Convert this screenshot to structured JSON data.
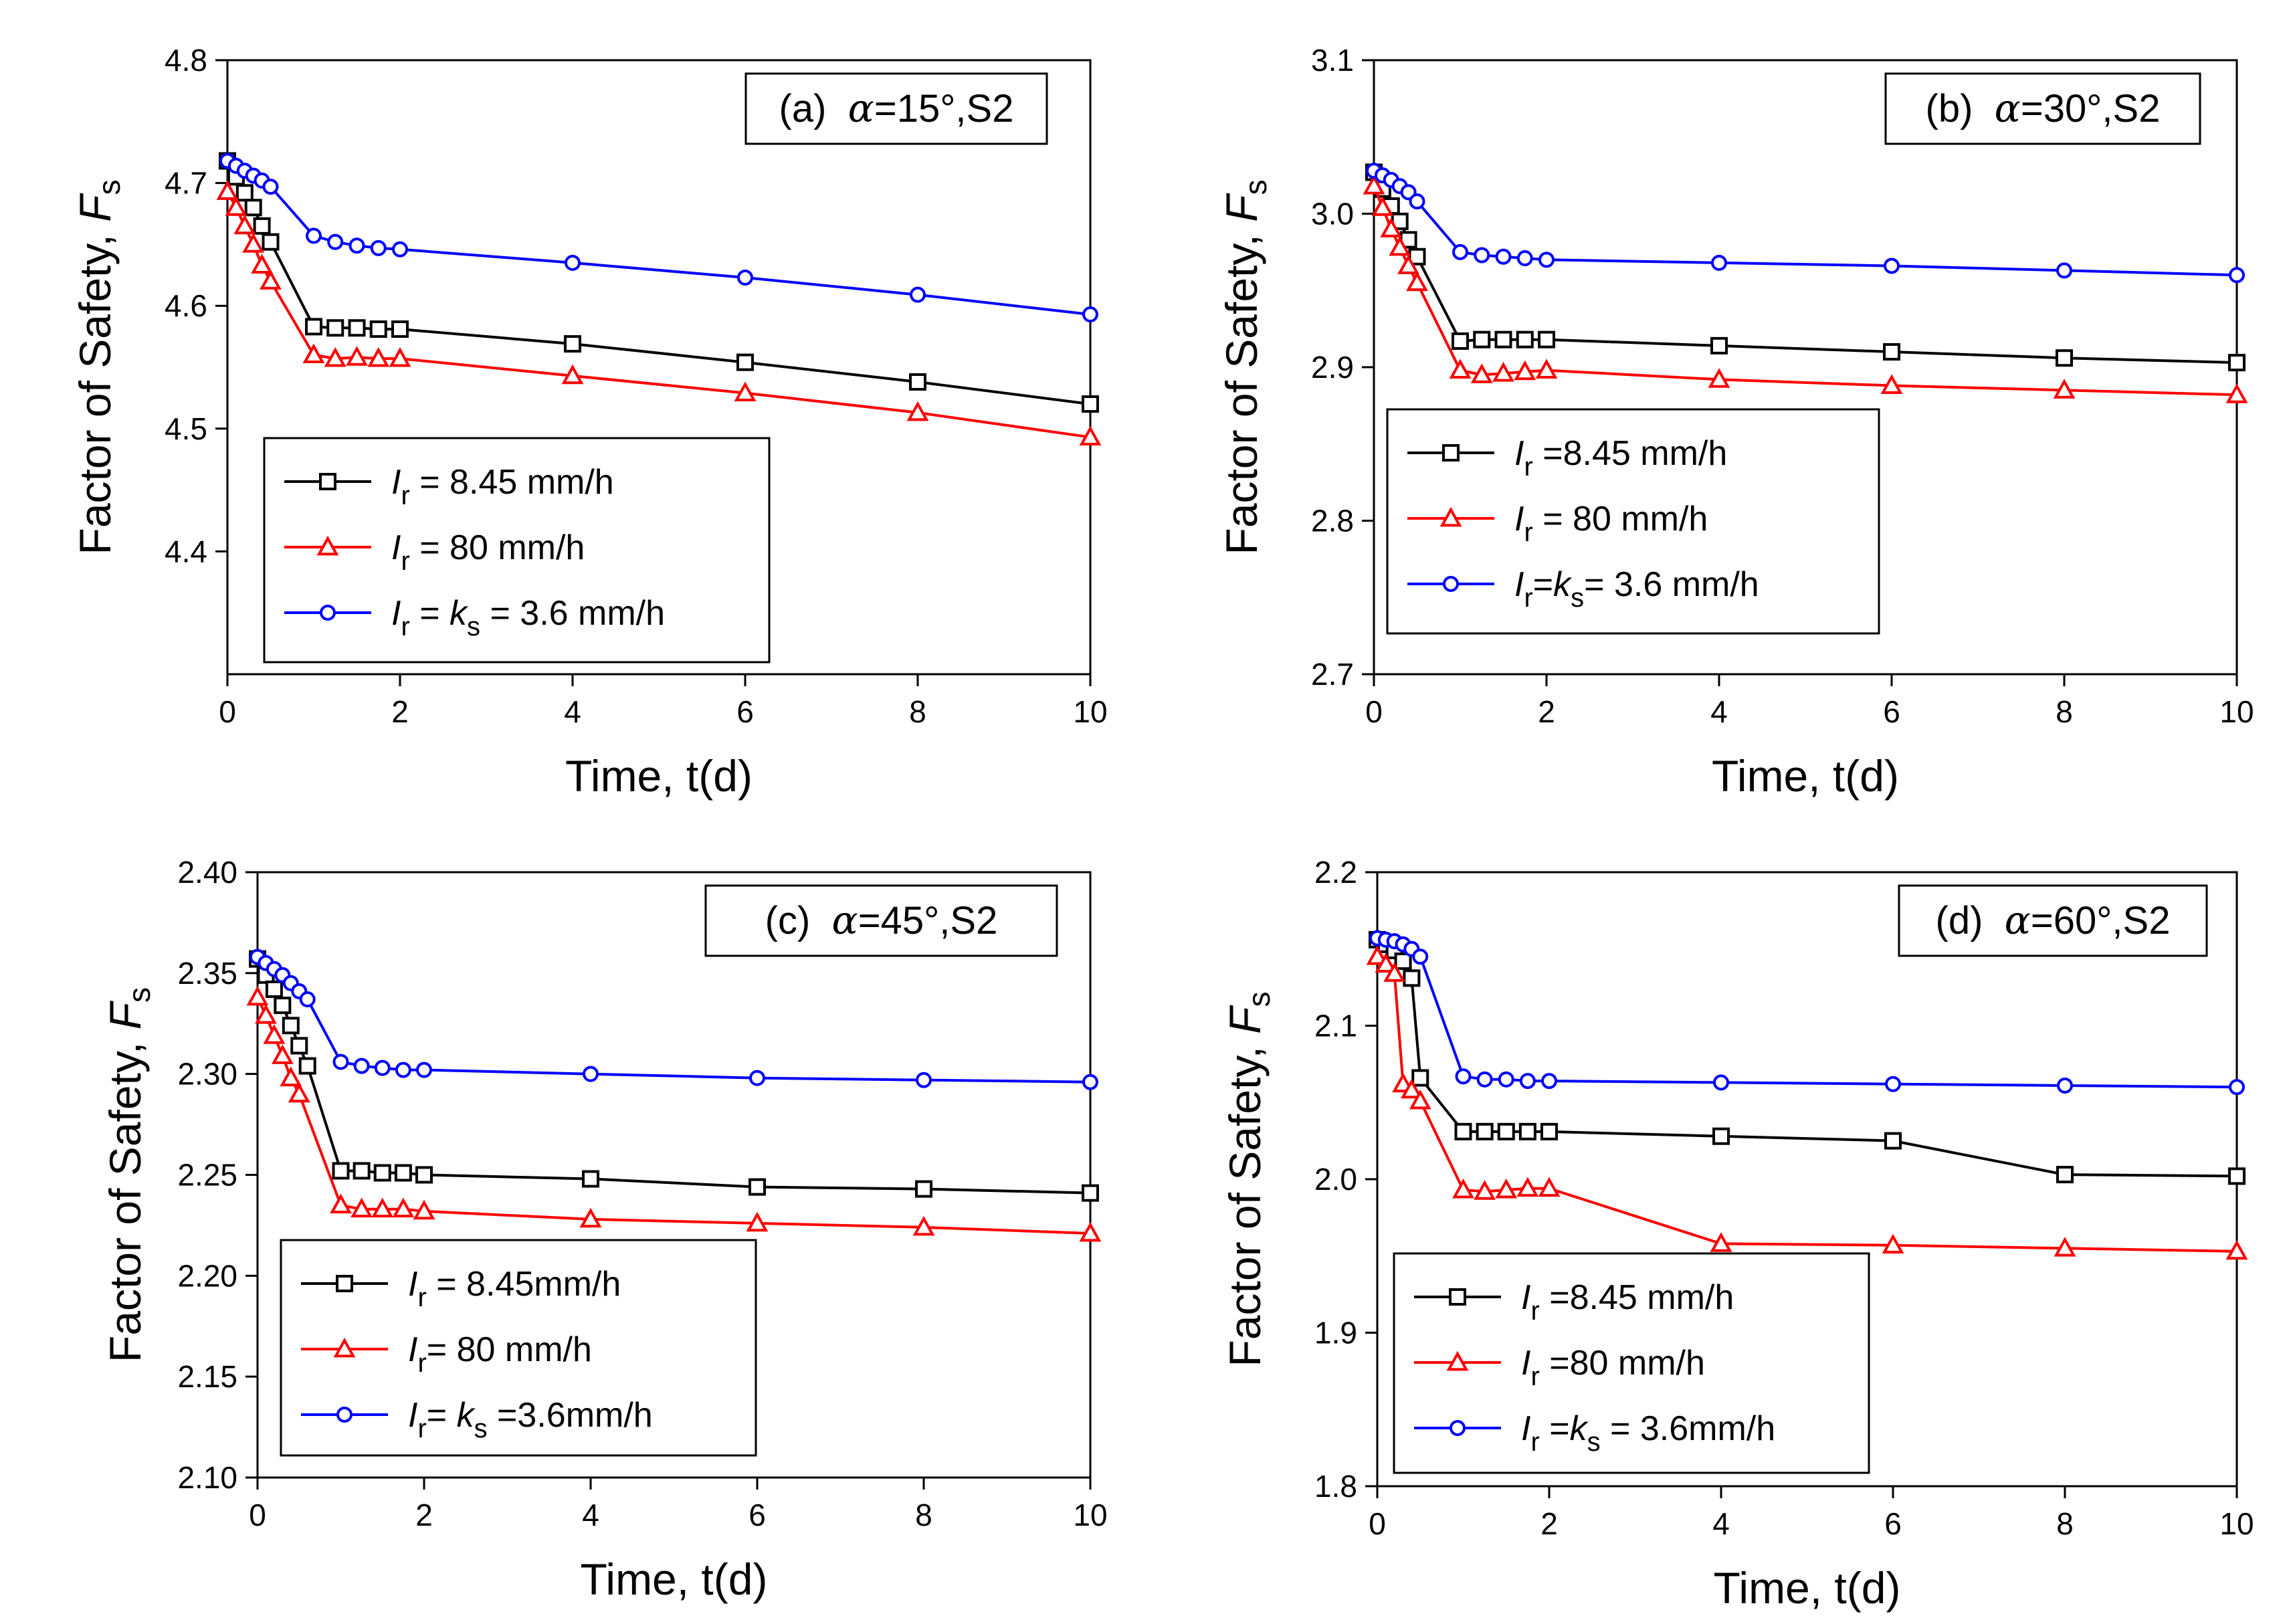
{
  "chart_data": [
    {
      "type": "line",
      "panel_label": {
        "prefix": "(a)",
        "alpha": "α",
        "angle": "=15°,S2"
      },
      "xlabel": "Time, t(d)",
      "ylabel": {
        "text": "Factor of Safety, ",
        "var": "F",
        "sub": "s"
      },
      "xlim": [
        0,
        10
      ],
      "ylim": [
        4.3,
        4.8
      ],
      "xticks": [
        "0",
        "2",
        "4",
        "6",
        "8",
        "10"
      ],
      "yticks": [
        "4.4",
        "4.5",
        "4.6",
        "4.7",
        "4.8"
      ],
      "legend_position": "bottom-left",
      "series": [
        {
          "color": "#000000",
          "marker": "square",
          "legend": {
            "var": "I",
            "sub": "r",
            "rest": " = 8.45 mm/h"
          },
          "x": [
            0,
            0.1,
            0.2,
            0.3,
            0.4,
            0.5,
            1,
            1.25,
            1.5,
            1.75,
            2,
            4,
            6,
            8,
            10
          ],
          "y": [
            4.718,
            4.705,
            4.692,
            4.68,
            4.665,
            4.652,
            4.583,
            4.582,
            4.582,
            4.581,
            4.581,
            4.569,
            4.554,
            4.538,
            4.52
          ]
        },
        {
          "color": "#ff0000",
          "marker": "triangle",
          "legend": {
            "var": "I",
            "sub": "r",
            "rest": " = 80 mm/h"
          },
          "x": [
            0,
            0.1,
            0.2,
            0.3,
            0.4,
            0.5,
            1,
            1.25,
            1.5,
            1.75,
            2,
            4,
            6,
            8,
            10
          ],
          "y": [
            4.693,
            4.68,
            4.665,
            4.65,
            4.633,
            4.62,
            4.56,
            4.557,
            4.558,
            4.557,
            4.557,
            4.543,
            4.529,
            4.513,
            4.493
          ]
        },
        {
          "color": "#0000ff",
          "marker": "circle",
          "legend": {
            "var": "I",
            "sub": "r",
            "mid": " = ",
            "var2": "k",
            "sub2": "s",
            "rest": " = 3.6 mm/h"
          },
          "x": [
            0,
            0.1,
            0.2,
            0.3,
            0.4,
            0.5,
            1,
            1.25,
            1.5,
            1.75,
            2,
            4,
            6,
            8,
            10
          ],
          "y": [
            4.718,
            4.714,
            4.71,
            4.706,
            4.702,
            4.697,
            4.657,
            4.652,
            4.649,
            4.647,
            4.646,
            4.635,
            4.623,
            4.609,
            4.593
          ]
        }
      ]
    },
    {
      "type": "line",
      "panel_label": {
        "prefix": "(b)",
        "alpha": "α",
        "angle": "=30°,S2"
      },
      "xlabel": "Time, t(d)",
      "ylabel": {
        "text": "Factor of Safety, ",
        "var": "F",
        "sub": "s"
      },
      "xlim": [
        0,
        10
      ],
      "ylim": [
        2.7,
        3.1
      ],
      "xticks": [
        "0",
        "2",
        "4",
        "6",
        "8",
        "10"
      ],
      "yticks": [
        "2.7",
        "2.8",
        "2.9",
        "3.0",
        "3.1"
      ],
      "legend_position": "bottom-left",
      "series": [
        {
          "color": "#000000",
          "marker": "square",
          "legend": {
            "var": "I",
            "sub": "r",
            "rest": " =8.45 mm/h"
          },
          "x": [
            0,
            0.1,
            0.2,
            0.3,
            0.4,
            0.5,
            1,
            1.25,
            1.5,
            1.75,
            2,
            4,
            6,
            8,
            10
          ],
          "y": [
            3.027,
            3.016,
            3.005,
            2.995,
            2.983,
            2.972,
            2.917,
            2.918,
            2.918,
            2.918,
            2.918,
            2.914,
            2.91,
            2.906,
            2.903
          ]
        },
        {
          "color": "#ff0000",
          "marker": "triangle",
          "legend": {
            "var": "I",
            "sub": "r",
            "rest": " = 80 mm/h"
          },
          "x": [
            0,
            0.1,
            0.2,
            0.3,
            0.4,
            0.5,
            1,
            1.25,
            1.5,
            1.75,
            2,
            4,
            6,
            8,
            10
          ],
          "y": [
            3.018,
            3.004,
            2.99,
            2.978,
            2.966,
            2.955,
            2.898,
            2.895,
            2.896,
            2.897,
            2.898,
            2.892,
            2.888,
            2.885,
            2.882
          ]
        },
        {
          "color": "#0000ff",
          "marker": "circle",
          "legend": {
            "var": "I",
            "sub": "r",
            "mid": "=",
            "var2": "k",
            "sub2": "s",
            "rest": "= 3.6 mm/h"
          },
          "x": [
            0,
            0.1,
            0.2,
            0.3,
            0.4,
            0.5,
            1,
            1.25,
            1.5,
            1.75,
            2,
            4,
            6,
            8,
            10
          ],
          "y": [
            3.028,
            3.025,
            3.022,
            3.018,
            3.014,
            3.008,
            2.975,
            2.973,
            2.972,
            2.971,
            2.97,
            2.968,
            2.966,
            2.963,
            2.96
          ]
        }
      ]
    },
    {
      "type": "line",
      "panel_label": {
        "prefix": "(c)",
        "alpha": "α",
        "angle": "=45°,S2"
      },
      "xlabel": "Time, t(d)",
      "ylabel": {
        "text": "Factor of Safety, ",
        "var": "F",
        "sub": "s"
      },
      "xlim": [
        0,
        10
      ],
      "ylim": [
        2.1,
        2.4
      ],
      "xticks": [
        "0",
        "2",
        "4",
        "6",
        "8",
        "10"
      ],
      "yticks": [
        "2.10",
        "2.15",
        "2.20",
        "2.25",
        "2.30",
        "2.35",
        "2.40"
      ],
      "legend_position": "bottom-left",
      "series": [
        {
          "color": "#000000",
          "marker": "square",
          "legend": {
            "var": "I",
            "sub": "r",
            "rest": " = 8.45mm/h"
          },
          "x": [
            0,
            0.1,
            0.2,
            0.3,
            0.4,
            0.5,
            0.6,
            1,
            1.25,
            1.5,
            1.75,
            2,
            4,
            6,
            8,
            10
          ],
          "y": [
            2.357,
            2.349,
            2.342,
            2.334,
            2.324,
            2.314,
            2.304,
            2.252,
            2.252,
            2.251,
            2.251,
            2.25,
            2.248,
            2.244,
            2.243,
            2.241
          ]
        },
        {
          "color": "#ff0000",
          "marker": "triangle",
          "legend": {
            "var": "I",
            "sub": "r",
            "rest": "= 80 mm/h"
          },
          "x": [
            0,
            0.1,
            0.2,
            0.3,
            0.4,
            0.5,
            1,
            1.25,
            1.5,
            1.75,
            2,
            4,
            6,
            8,
            10
          ],
          "y": [
            2.338,
            2.329,
            2.319,
            2.309,
            2.298,
            2.29,
            2.235,
            2.233,
            2.233,
            2.233,
            2.232,
            2.228,
            2.226,
            2.224,
            2.221
          ]
        },
        {
          "color": "#0000ff",
          "marker": "circle",
          "legend": {
            "var": "I",
            "sub": "r",
            "mid": "= ",
            "var2": "k",
            "sub2": "s",
            "rest": " =3.6mm/h"
          },
          "x": [
            0,
            0.1,
            0.2,
            0.3,
            0.4,
            0.5,
            0.6,
            1,
            1.25,
            1.5,
            1.75,
            2,
            4,
            6,
            8,
            10
          ],
          "y": [
            2.358,
            2.355,
            2.352,
            2.349,
            2.345,
            2.341,
            2.337,
            2.306,
            2.304,
            2.303,
            2.302,
            2.302,
            2.3,
            2.298,
            2.297,
            2.296
          ]
        }
      ]
    },
    {
      "type": "line",
      "panel_label": {
        "prefix": "(d)",
        "alpha": "α",
        "angle": "=60°,S2"
      },
      "xlabel": "Time, t(d)",
      "ylabel": {
        "text": "Factor of Safety, ",
        "var": "F",
        "sub": "s"
      },
      "xlim": [
        0,
        10
      ],
      "ylim": [
        1.8,
        2.2
      ],
      "xticks": [
        "0",
        "2",
        "4",
        "6",
        "8",
        "10"
      ],
      "yticks": [
        "1.8",
        "1.9",
        "2.0",
        "2.1",
        "2.2"
      ],
      "legend_position": "bottom-left",
      "series": [
        {
          "color": "#000000",
          "marker": "square",
          "legend": {
            "var": "I",
            "sub": "r",
            "rest": " =8.45 mm/h"
          },
          "x": [
            0,
            0.1,
            0.2,
            0.3,
            0.4,
            0.5,
            1,
            1.25,
            1.5,
            1.75,
            2,
            4,
            6,
            8,
            10
          ],
          "y": [
            2.156,
            2.153,
            2.149,
            2.142,
            2.131,
            2.066,
            2.031,
            2.031,
            2.031,
            2.031,
            2.031,
            2.028,
            2.025,
            2.003,
            2.002
          ]
        },
        {
          "color": "#ff0000",
          "marker": "triangle",
          "legend": {
            "var": "I",
            "sub": "r",
            "rest": " =80 mm/h"
          },
          "x": [
            0,
            0.1,
            0.2,
            0.3,
            0.4,
            0.5,
            1,
            1.25,
            1.5,
            1.75,
            2,
            4,
            6,
            8,
            10
          ],
          "y": [
            2.145,
            2.14,
            2.134,
            2.062,
            2.058,
            2.051,
            1.993,
            1.992,
            1.993,
            1.994,
            1.994,
            1.958,
            1.957,
            1.955,
            1.953
          ]
        },
        {
          "color": "#0000ff",
          "marker": "circle",
          "legend": {
            "var": "I",
            "sub": "r",
            "mid": " =",
            "var2": "k",
            "sub2": "s",
            "rest": " = 3.6mm/h"
          },
          "x": [
            0,
            0.1,
            0.2,
            0.3,
            0.4,
            0.5,
            1,
            1.25,
            1.5,
            1.75,
            2,
            4,
            6,
            8,
            10
          ],
          "y": [
            2.157,
            2.156,
            2.155,
            2.153,
            2.15,
            2.145,
            2.067,
            2.065,
            2.065,
            2.064,
            2.064,
            2.063,
            2.062,
            2.061,
            2.06
          ]
        }
      ]
    }
  ]
}
